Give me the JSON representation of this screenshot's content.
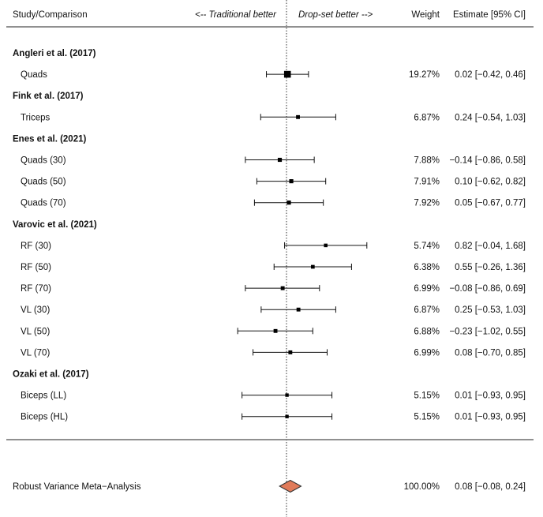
{
  "chart_data": {
    "type": "forest",
    "header": {
      "study": "Study/Comparison",
      "left_favors": "<-- Traditional better",
      "right_favors": "Drop-set better -->",
      "weight": "Weight",
      "estimate": "Estimate [95% CI]"
    },
    "null_line": 0,
    "groups": [
      {
        "name": "Angleri et al. (2017)",
        "rows": [
          {
            "label": "Quads",
            "est": 0.02,
            "lo": -0.42,
            "hi": 0.46,
            "weight": 19.27,
            "weight_text": "19.27%",
            "ci_text": "0.02 [−0.42, 0.46]"
          }
        ]
      },
      {
        "name": "Fink et al. (2017)",
        "rows": [
          {
            "label": "Triceps",
            "est": 0.24,
            "lo": -0.54,
            "hi": 1.03,
            "weight": 6.87,
            "weight_text": "6.87%",
            "ci_text": "0.24 [−0.54, 1.03]"
          }
        ]
      },
      {
        "name": "Enes et al. (2021)",
        "rows": [
          {
            "label": "Quads (30)",
            "est": -0.14,
            "lo": -0.86,
            "hi": 0.58,
            "weight": 7.88,
            "weight_text": "7.88%",
            "ci_text": "−0.14 [−0.86, 0.58]"
          },
          {
            "label": "Quads (50)",
            "est": 0.1,
            "lo": -0.62,
            "hi": 0.82,
            "weight": 7.91,
            "weight_text": "7.91%",
            "ci_text": "0.10 [−0.62, 0.82]"
          },
          {
            "label": "Quads (70)",
            "est": 0.05,
            "lo": -0.67,
            "hi": 0.77,
            "weight": 7.92,
            "weight_text": "7.92%",
            "ci_text": "0.05 [−0.67, 0.77]"
          }
        ]
      },
      {
        "name": "Varovic et al. (2021)",
        "rows": [
          {
            "label": "RF (30)",
            "est": 0.82,
            "lo": -0.04,
            "hi": 1.68,
            "weight": 5.74,
            "weight_text": "5.74%",
            "ci_text": "0.82 [−0.04, 1.68]"
          },
          {
            "label": "RF (50)",
            "est": 0.55,
            "lo": -0.26,
            "hi": 1.36,
            "weight": 6.38,
            "weight_text": "6.38%",
            "ci_text": "0.55 [−0.26, 1.36]"
          },
          {
            "label": "RF (70)",
            "est": -0.08,
            "lo": -0.86,
            "hi": 0.69,
            "weight": 6.99,
            "weight_text": "6.99%",
            "ci_text": "−0.08 [−0.86, 0.69]"
          },
          {
            "label": "VL (30)",
            "est": 0.25,
            "lo": -0.53,
            "hi": 1.03,
            "weight": 6.87,
            "weight_text": "6.87%",
            "ci_text": "0.25 [−0.53, 1.03]"
          },
          {
            "label": "VL (50)",
            "est": -0.23,
            "lo": -1.02,
            "hi": 0.55,
            "weight": 6.88,
            "weight_text": "6.88%",
            "ci_text": "−0.23 [−1.02, 0.55]"
          },
          {
            "label": "VL (70)",
            "est": 0.08,
            "lo": -0.7,
            "hi": 0.85,
            "weight": 6.99,
            "weight_text": "6.99%",
            "ci_text": "0.08 [−0.70, 0.85]"
          }
        ]
      },
      {
        "name": "Ozaki et al. (2017)",
        "rows": [
          {
            "label": "Biceps (LL)",
            "est": 0.01,
            "lo": -0.93,
            "hi": 0.95,
            "weight": 5.15,
            "weight_text": "5.15%",
            "ci_text": "0.01 [−0.93, 0.95]"
          },
          {
            "label": "Biceps (HL)",
            "est": 0.01,
            "lo": -0.93,
            "hi": 0.95,
            "weight": 5.15,
            "weight_text": "5.15%",
            "ci_text": "0.01 [−0.93, 0.95]"
          }
        ]
      }
    ],
    "summary": {
      "label": "Robust Variance Meta−Analysis",
      "est": 0.08,
      "lo": -0.08,
      "hi": 0.24,
      "weight_text": "100.00%",
      "ci_text": "0.08 [−0.08, 0.24]",
      "color": "#e07b5a"
    }
  }
}
